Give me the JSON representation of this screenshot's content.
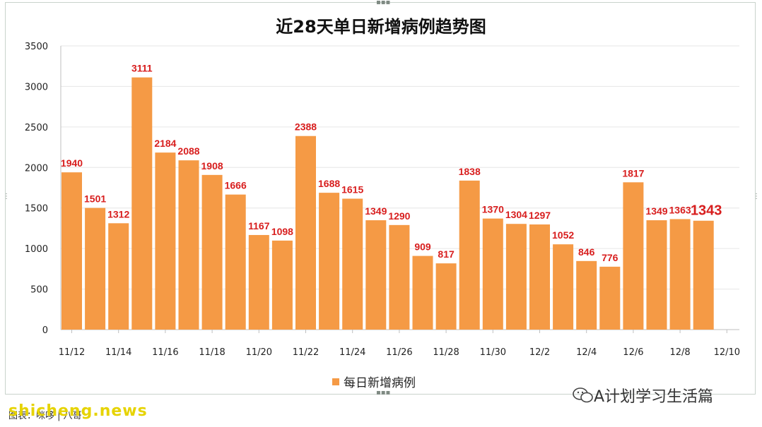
{
  "chart_data": {
    "type": "bar",
    "title": "近28天单日新增病例趋势图",
    "categories": [
      "11/12",
      "11/13",
      "11/14",
      "11/15",
      "11/16",
      "11/17",
      "11/18",
      "11/19",
      "11/20",
      "11/21",
      "11/22",
      "11/23",
      "11/24",
      "11/25",
      "11/26",
      "11/27",
      "11/28",
      "11/29",
      "11/30",
      "12/1",
      "12/2",
      "12/3",
      "12/4",
      "12/5",
      "12/6",
      "12/7",
      "12/8",
      "12/9"
    ],
    "x_tick_labels": [
      "11/12",
      "11/14",
      "11/16",
      "11/18",
      "11/20",
      "11/22",
      "11/24",
      "11/26",
      "11/28",
      "11/30",
      "12/2",
      "12/4",
      "12/6",
      "12/8",
      "12/10"
    ],
    "series": [
      {
        "name": "每日新增病例",
        "values": [
          1940,
          1501,
          1312,
          3111,
          2184,
          2088,
          1908,
          1666,
          1167,
          1098,
          2388,
          1688,
          1615,
          1349,
          1290,
          909,
          817,
          1838,
          1370,
          1304,
          1297,
          1052,
          846,
          776,
          1817,
          1349,
          1363,
          1343
        ]
      }
    ],
    "ylim": [
      0,
      3500
    ],
    "y_ticks": [
      0,
      500,
      1000,
      1500,
      2000,
      2500,
      3000,
      3500
    ],
    "grid": true,
    "legend": "bottom",
    "bar_color": "#f59a45",
    "label_color": "#d81e1e",
    "highlight_last": true
  },
  "legend": {
    "label": "每日新增病例"
  },
  "branding": {
    "wechat_account": "A计划学习生活篇",
    "watermark": "shicheng.news",
    "footnote": "图表：咪哆 | 八哥"
  }
}
